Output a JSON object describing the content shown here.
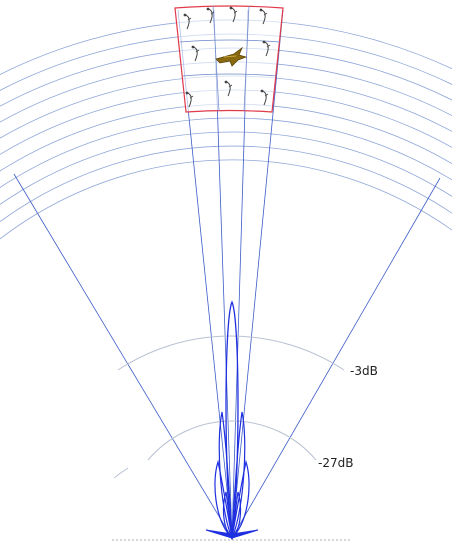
{
  "colors": {
    "arc_line": "#8fa6d8",
    "beam_line": "#3c5cc8",
    "gain_ring": "#b9c1d2",
    "lobe": "#1f2fe0",
    "cell_border": "#e03a4a",
    "cell_grid": "#6a86c8",
    "target": "#8a6a10",
    "baseline": "#b0b0b0",
    "bird_marker": "#444444"
  },
  "icons": {
    "target": "aircraft-icon",
    "cell_markers": "bird-icon"
  },
  "gain_labels": [
    {
      "text": "-3dB"
    },
    {
      "text": "-27dB"
    }
  ]
}
